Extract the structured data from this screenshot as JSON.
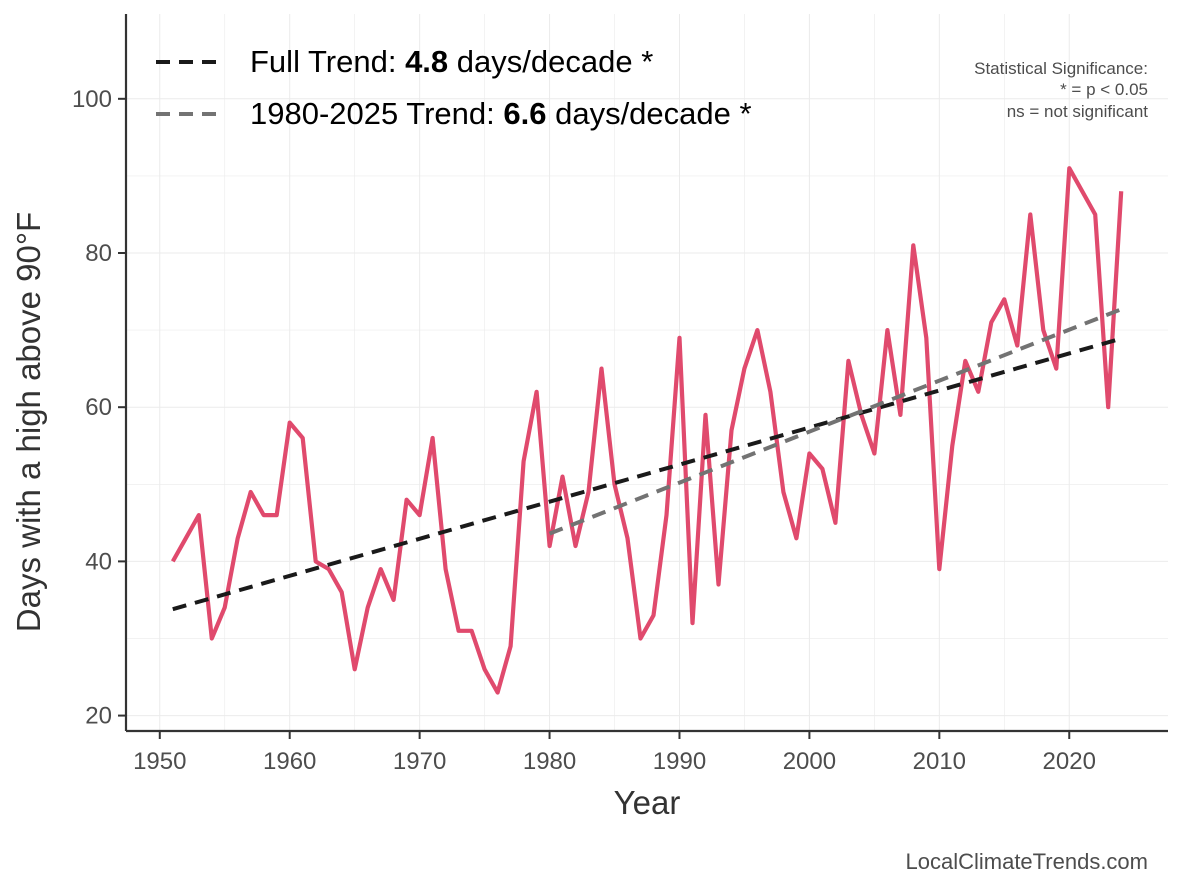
{
  "chart_data": {
    "type": "line",
    "xlabel": "Year",
    "ylabel": "Days with a high above 90°F",
    "xlim": [
      1947.4,
      2027.6
    ],
    "ylim": [
      18,
      111
    ],
    "x_ticks": [
      1950,
      1960,
      1970,
      1980,
      1990,
      2000,
      2010,
      2020
    ],
    "y_ticks": [
      20,
      40,
      60,
      80,
      100
    ],
    "grid": true,
    "legend_position": "top-left",
    "series": [
      {
        "x": [
          1951,
          1952,
          1953,
          1954,
          1955,
          1956,
          1957,
          1958,
          1959,
          1960,
          1961,
          1962,
          1963,
          1964,
          1965,
          1966,
          1967,
          1968,
          1969,
          1970,
          1971,
          1972,
          1973,
          1974,
          1975,
          1976,
          1977,
          1978,
          1979,
          1980,
          1981,
          1982,
          1983,
          1984,
          1985,
          1986,
          1987,
          1988,
          1989,
          1990,
          1991,
          1992,
          1993,
          1994,
          1995,
          1996,
          1997,
          1998,
          1999,
          2000,
          2001,
          2002,
          2003,
          2004,
          2005,
          2006,
          2007,
          2008,
          2009,
          2010,
          2011,
          2012,
          2013,
          2014,
          2015,
          2016,
          2017,
          2018,
          2019,
          2020,
          2022,
          2023,
          2024
        ],
        "values": [
          40,
          43,
          46,
          30,
          34,
          43,
          49,
          46,
          46,
          58,
          56,
          40,
          39,
          36,
          26,
          34,
          39,
          35,
          48,
          46,
          56,
          39,
          31,
          31,
          26,
          23,
          29,
          53,
          62,
          42,
          51,
          42,
          49,
          65,
          50,
          43,
          30,
          33,
          46,
          69,
          32,
          59,
          37,
          57,
          65,
          70,
          62,
          49,
          43,
          54,
          52,
          45,
          66,
          59,
          54,
          70,
          59,
          81,
          69,
          39,
          55,
          66,
          62,
          71,
          74,
          68,
          85,
          70,
          65,
          91,
          85,
          60,
          88
        ],
        "color": "#e04a6d"
      }
    ],
    "trend_lines": [
      {
        "legend_prefix": "Full Trend: ",
        "slope_text": "4.8",
        "legend_suffix": " days/decade *",
        "x": [
          1951,
          2024
        ],
        "y": [
          33.8,
          68.9
        ],
        "color": "#1a1a1a"
      },
      {
        "legend_prefix": "1980-2025 Trend: ",
        "slope_text": "6.6",
        "legend_suffix": " days/decade *",
        "x": [
          1980,
          2024
        ],
        "y": [
          43.6,
          72.7
        ],
        "color": "#737373"
      }
    ],
    "significance_note": [
      "Statistical Significance:",
      "* = p < 0.05",
      "ns = not significant"
    ],
    "source": "LocalClimateTrends.com"
  }
}
